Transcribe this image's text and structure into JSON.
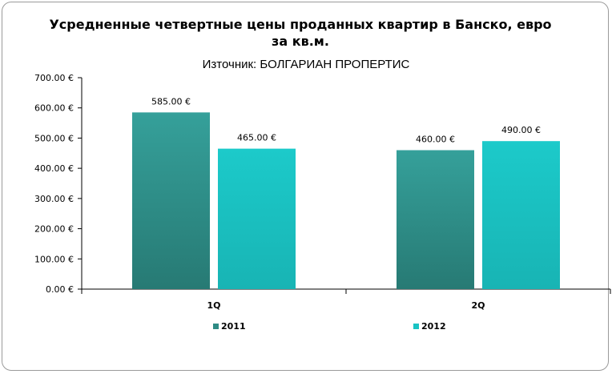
{
  "chart_data": {
    "type": "bar",
    "title": "Усредненные четвертные цены проданных квартир в Банско, евро за кв.м.",
    "subtitle": "Източник: БОЛГАРИАН ПРОПЕРТИС",
    "categories": [
      "1Q",
      "2Q"
    ],
    "series": [
      {
        "name": "2011",
        "values": [
          585,
          460
        ],
        "labels": [
          "585.00 €",
          "460.00 €"
        ],
        "color": "#2e8b84"
      },
      {
        "name": "2012",
        "values": [
          465,
          490
        ],
        "labels": [
          "465.00 €",
          "490.00 €"
        ],
        "color": "#19c3c3"
      }
    ],
    "ylim": [
      0,
      700
    ],
    "yticks": [
      {
        "value": 0,
        "label": "0.00 €"
      },
      {
        "value": 100,
        "label": "100.00 €"
      },
      {
        "value": 200,
        "label": "200.00 €"
      },
      {
        "value": 300,
        "label": "300.00 €"
      },
      {
        "value": 400,
        "label": "400.00 €"
      },
      {
        "value": 500,
        "label": "500.00 €"
      },
      {
        "value": 600,
        "label": "600.00 €"
      },
      {
        "value": 700,
        "label": "700.00 €"
      }
    ],
    "grid": false,
    "legend": "bottom",
    "xlabel": "",
    "ylabel": ""
  }
}
